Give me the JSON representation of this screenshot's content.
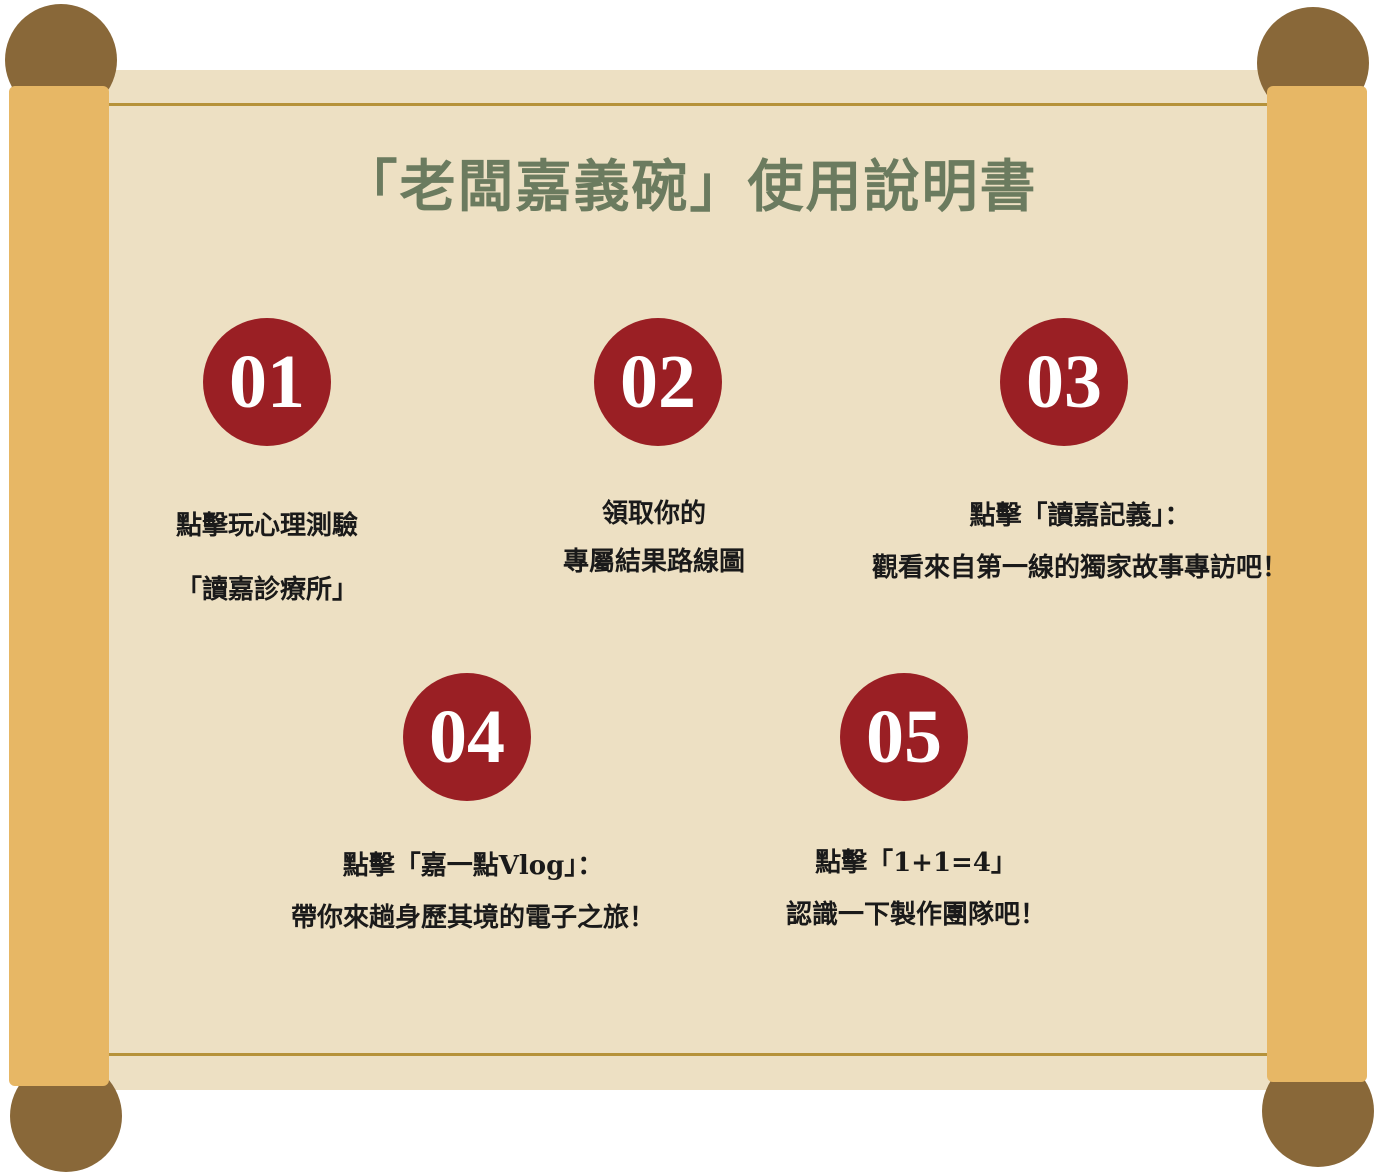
{
  "title": "「老闆嘉義碗」使用說明書",
  "steps": [
    {
      "number": "01",
      "line1": "點擊玩心理測驗",
      "line2": "「讀嘉診療所」"
    },
    {
      "number": "02",
      "line1": "領取你的",
      "line2": "專屬結果路線圖"
    },
    {
      "number": "03",
      "line1": "點擊「讀嘉記義」：",
      "line2": "觀看來自第一線的獨家故事專訪吧！"
    },
    {
      "number": "04",
      "line1": "點擊「嘉一點Vlog」：",
      "line2": "帶你來趟身歷其境的電子之旅！"
    },
    {
      "number": "05",
      "line1": "點擊「1+1=4」",
      "line2": "認識一下製作團隊吧！"
    }
  ],
  "colors": {
    "paper": "#ede0c3",
    "rod": "#e7b765",
    "knob": "#896839",
    "badge": "#9a1f24",
    "title": "#6b7b5f"
  }
}
